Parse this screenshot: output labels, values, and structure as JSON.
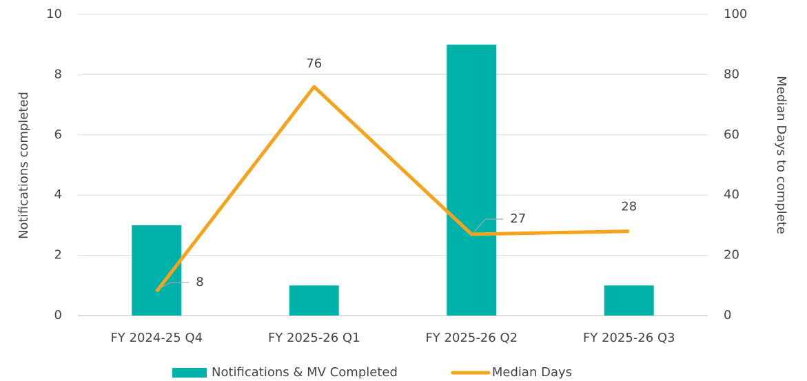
{
  "chart_data": {
    "type": "bar",
    "categories": [
      "FY 2024-25 Q4",
      "FY 2025-26 Q1",
      "FY 2025-26 Q2",
      "FY 2025-26 Q3"
    ],
    "series": [
      {
        "name": "Notifications & MV Completed",
        "type": "bar",
        "color": "#00b2a9",
        "values": [
          3,
          1,
          9,
          1
        ]
      },
      {
        "name": "Median Days",
        "type": "line",
        "axis": "y2",
        "color": "#f7a21b",
        "values": [
          8,
          76,
          27,
          28
        ]
      }
    ],
    "ylabel": "Notifications completed",
    "y2label": "Median Days to complete",
    "ylim": [
      0,
      10
    ],
    "yticks": [
      0,
      2,
      4,
      6,
      8,
      10
    ],
    "y2lim": [
      0,
      100
    ],
    "y2ticks": [
      0,
      20,
      40,
      60,
      80,
      100
    ],
    "grid": true,
    "legend": "bottom"
  }
}
